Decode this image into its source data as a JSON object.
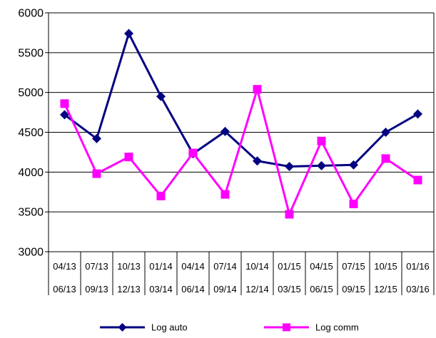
{
  "chart_data": {
    "type": "line",
    "categories": [
      [
        "04/13",
        "06/13"
      ],
      [
        "07/13",
        "09/13"
      ],
      [
        "10/13",
        "12/13"
      ],
      [
        "01/14",
        "03/14"
      ],
      [
        "04/14",
        "06/14"
      ],
      [
        "07/14",
        "09/14"
      ],
      [
        "10/14",
        "12/14"
      ],
      [
        "01/15",
        "03/15"
      ],
      [
        "04/15",
        "06/15"
      ],
      [
        "07/15",
        "09/15"
      ],
      [
        "10/15",
        "12/15"
      ],
      [
        "01/16",
        "03/16"
      ]
    ],
    "series": [
      {
        "name": "Log auto",
        "color": "#000080",
        "marker": "diamond",
        "values": [
          4720,
          4420,
          5740,
          4950,
          4230,
          4510,
          4140,
          4070,
          4080,
          4090,
          4500,
          4730
        ]
      },
      {
        "name": "Log comm",
        "color": "#FF00FF",
        "marker": "square",
        "values": [
          4860,
          3980,
          4190,
          3700,
          4240,
          3720,
          5040,
          3470,
          4390,
          3600,
          4170,
          3900
        ]
      }
    ],
    "yticks": [
      3000,
      3500,
      4000,
      4500,
      5000,
      5500,
      6000
    ],
    "ylim": [
      3000,
      6000
    ],
    "grid": "horizontal",
    "legend": "bottom",
    "title": "",
    "xlabel": "",
    "ylabel": ""
  }
}
